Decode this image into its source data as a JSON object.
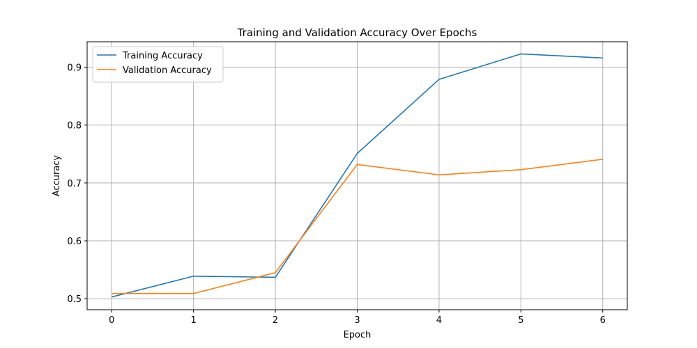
{
  "chart_data": {
    "type": "line",
    "title": "Training and Validation Accuracy Over Epochs",
    "xlabel": "Epoch",
    "ylabel": "Accuracy",
    "x": [
      0,
      1,
      2,
      3,
      4,
      5,
      6
    ],
    "x_ticks": [
      "0",
      "1",
      "2",
      "3",
      "4",
      "5",
      "6"
    ],
    "y_ticks": [
      "0.5",
      "0.6",
      "0.7",
      "0.8",
      "0.9"
    ],
    "xlim": [
      -0.3,
      6.3
    ],
    "ylim": [
      0.481,
      0.944
    ],
    "grid": true,
    "legend_position": "upper-left",
    "series": [
      {
        "name": "Training Accuracy",
        "color": "#1f77b4",
        "values": [
          0.503,
          0.539,
          0.537,
          0.751,
          0.879,
          0.923,
          0.916
        ]
      },
      {
        "name": "Validation Accuracy",
        "color": "#ff7f0e",
        "values": [
          0.509,
          0.509,
          0.545,
          0.732,
          0.714,
          0.723,
          0.741
        ]
      }
    ]
  }
}
